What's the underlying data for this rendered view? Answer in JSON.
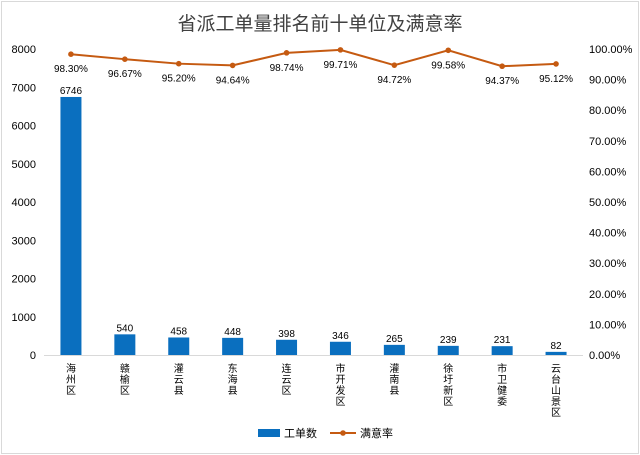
{
  "chart_data": {
    "type": "bar",
    "title": "省派工单量排名前十单位及满意率",
    "categories": [
      "海州区",
      "赣榆区",
      "灌云县",
      "东海县",
      "连云区",
      "市开发区",
      "灌南县",
      "徐圩新区",
      "市卫健委",
      "云台山景区"
    ],
    "series": [
      {
        "name": "工单数",
        "type": "bar",
        "axis": "left",
        "color": "#0a6fbf",
        "values": [
          6746,
          540,
          458,
          448,
          398,
          346,
          265,
          239,
          231,
          82
        ]
      },
      {
        "name": "满意率",
        "type": "line",
        "axis": "right",
        "color": "#c55a11",
        "values": [
          98.3,
          96.67,
          95.2,
          94.64,
          98.74,
          99.71,
          94.72,
          99.58,
          94.37,
          95.12
        ]
      }
    ],
    "y_left": {
      "min": 0,
      "max": 8000,
      "ticks": [
        "0",
        "1000",
        "2000",
        "3000",
        "4000",
        "5000",
        "6000",
        "7000",
        "8000"
      ]
    },
    "y_right": {
      "min": 0,
      "max": 100,
      "ticks": [
        "0.00%",
        "10.00%",
        "20.00%",
        "30.00%",
        "40.00%",
        "50.00%",
        "60.00%",
        "70.00%",
        "80.00%",
        "90.00%",
        "100.00%"
      ]
    },
    "bar_labels": [
      "6746",
      "540",
      "458",
      "448",
      "398",
      "346",
      "265",
      "239",
      "231",
      "82"
    ],
    "line_labels": [
      "98.30%",
      "96.67%",
      "95.20%",
      "94.64%",
      "98.74%",
      "99.71%",
      "94.72%",
      "99.58%",
      "94.37%",
      "95.12%"
    ],
    "legend": {
      "position": "bottom",
      "items": [
        "工单数",
        "满意率"
      ]
    },
    "grid": false
  }
}
